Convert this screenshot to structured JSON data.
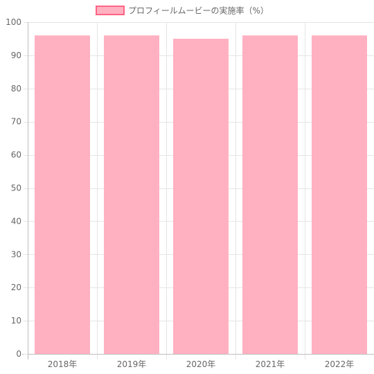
{
  "chart_data": {
    "type": "bar",
    "categories": [
      "2018年",
      "2019年",
      "2020年",
      "2021年",
      "2022年"
    ],
    "series": [
      {
        "name": "プロフィールムービーの実施率（%）",
        "values": [
          96,
          96,
          95,
          96,
          96
        ],
        "color": "#FFB1C1",
        "border_color": "#FF6384"
      }
    ],
    "ylim": [
      0,
      100
    ],
    "yticks": [
      0,
      10,
      20,
      30,
      40,
      50,
      60,
      70,
      80,
      90,
      100
    ],
    "grid": true,
    "legend_position": "top-center",
    "colors": {
      "grid": "#e5e5e5",
      "axis": "#bdbdbd",
      "text": "#666666"
    }
  }
}
